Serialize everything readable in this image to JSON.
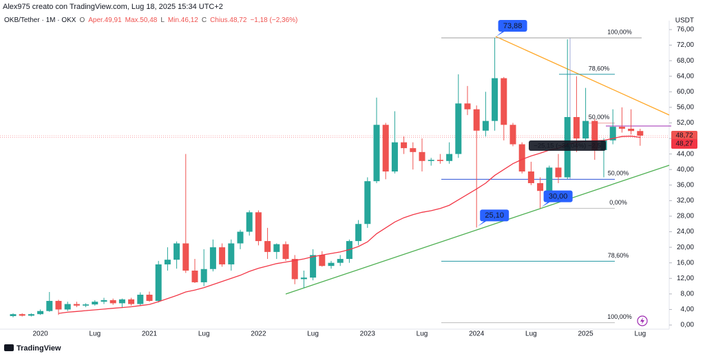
{
  "chart_data": {
    "type": "candlestick",
    "watermark": "Alex975 creato con TradingView.com, Lug 18, 2025 15:34 UTC+2",
    "legend_parts": [
      {
        "label": "OKB/Tether · 1M · OKX",
        "color": "#131722"
      },
      {
        "label": "O",
        "color": "#555555"
      },
      {
        "label": "Aper.49,91",
        "color": "#ef5350"
      },
      {
        "label": "Max.50,48",
        "color": "#ef5350"
      },
      {
        "label": "L",
        "color": "#555555"
      },
      {
        "label": "Min.46,12",
        "color": "#ef5350"
      },
      {
        "label": "C",
        "color": "#555555"
      },
      {
        "label": "Chius.48,72",
        "color": "#ef5350"
      },
      {
        "label": "−1,18 (−2,36%)",
        "color": "#ef5350"
      }
    ],
    "y_axis_label": "USDT",
    "brand": "TradingView",
    "up_color": "#26a69a",
    "down_color": "#ef5350",
    "grid": false,
    "categories": [
      null,
      null,
      null,
      "2020",
      null,
      null,
      null,
      null,
      null,
      "Lug",
      null,
      null,
      null,
      null,
      null,
      "2021",
      null,
      null,
      null,
      null,
      null,
      "Lug",
      null,
      null,
      null,
      null,
      null,
      "2022",
      null,
      null,
      null,
      null,
      null,
      "Lug",
      null,
      null,
      null,
      null,
      null,
      "2023",
      null,
      null,
      null,
      null,
      null,
      "Lug",
      null,
      null,
      null,
      null,
      null,
      "2024",
      null,
      null,
      null,
      null,
      null,
      "Lug",
      null,
      null,
      null,
      null,
      null,
      "2025",
      null,
      null,
      null,
      null,
      null,
      "Lug"
    ],
    "open": [
      2.3,
      2.8,
      2.4,
      2.8,
      3.6,
      6.2,
      4.0,
      5.4,
      5.0,
      5.3,
      6.0,
      6.4,
      5.6,
      6.6,
      5.4,
      7.8,
      6.2,
      15.6,
      16.8,
      21.0,
      14.0,
      11.0,
      14.4,
      20.0,
      15.6,
      21.0,
      24.0,
      29.0,
      21.6,
      18.8,
      20.8,
      17.0,
      11.8,
      12.2,
      18.0,
      15.2,
      16.0,
      17.0,
      21.6,
      26.0,
      37.0,
      51.5,
      39.5,
      47.0,
      45.5,
      44.5,
      42.2,
      42.5,
      42.2,
      44.0,
      57.0,
      55.5,
      50.0,
      52.5,
      63.5,
      51.5,
      46.5,
      39.5,
      36.5,
      34.5,
      40.5,
      38.0,
      53.5,
      48.0,
      52.5,
      45.0,
      47.5,
      51.0,
      50.5,
      49.91
    ],
    "high": [
      3.0,
      3.0,
      3.0,
      4.0,
      8.5,
      6.5,
      6.0,
      6.0,
      5.6,
      6.4,
      7.0,
      6.8,
      6.8,
      7.0,
      8.4,
      8.6,
      16.5,
      20.0,
      21.5,
      44.0,
      17.0,
      19.5,
      22.0,
      21.0,
      22.0,
      24.5,
      29.5,
      29.5,
      25.0,
      21.0,
      21.5,
      18.0,
      14.0,
      19.5,
      19.0,
      16.5,
      18.0,
      22.0,
      27.0,
      38.0,
      58.5,
      52.0,
      55.0,
      48.5,
      47.0,
      48.0,
      43.0,
      44.0,
      47.0,
      64.5,
      61.5,
      56.5,
      60.0,
      73.88,
      63.8,
      52.0,
      47.0,
      42.0,
      38.0,
      41.0,
      44.0,
      73.5,
      64.0,
      61.0,
      53.0,
      48.0,
      55.5,
      56.0,
      55.5,
      50.48
    ],
    "low": [
      2.0,
      2.2,
      2.2,
      2.6,
      3.4,
      2.6,
      3.6,
      4.6,
      4.6,
      5.0,
      5.4,
      5.2,
      4.4,
      5.0,
      5.0,
      6.0,
      5.8,
      14.0,
      14.5,
      13.4,
      10.8,
      10.0,
      13.8,
      15.0,
      14.0,
      19.5,
      23.0,
      20.5,
      17.0,
      17.0,
      16.5,
      10.5,
      9.5,
      11.5,
      15.0,
      14.5,
      15.2,
      16.0,
      20.5,
      25.0,
      36.5,
      37.5,
      39.0,
      44.0,
      40.0,
      39.5,
      41.0,
      41.5,
      41.5,
      43.0,
      54.0,
      25.1,
      48.5,
      50.0,
      47.5,
      46.0,
      39.0,
      36.0,
      30.0,
      34.0,
      36.5,
      37.5,
      44.5,
      47.0,
      42.5,
      38.0,
      46.5,
      49.5,
      49.0,
      46.12
    ],
    "close": [
      2.8,
      2.4,
      2.8,
      3.6,
      6.2,
      4.0,
      5.4,
      5.0,
      5.3,
      6.0,
      6.4,
      5.6,
      6.6,
      5.4,
      7.8,
      6.2,
      15.6,
      16.8,
      21.0,
      14.0,
      11.0,
      14.4,
      20.0,
      15.6,
      21.0,
      24.0,
      29.0,
      21.6,
      18.8,
      20.8,
      17.0,
      11.8,
      12.2,
      18.0,
      15.2,
      16.0,
      17.0,
      21.6,
      26.0,
      37.0,
      51.5,
      39.5,
      47.0,
      45.5,
      44.5,
      42.2,
      42.5,
      42.2,
      44.0,
      57.0,
      55.5,
      50.0,
      52.5,
      63.5,
      51.5,
      46.5,
      39.5,
      36.5,
      34.5,
      40.5,
      38.0,
      53.5,
      48.0,
      52.5,
      45.0,
      47.5,
      51.0,
      50.5,
      49.91,
      48.72
    ],
    "ma": {
      "color": "#f23645",
      "values": [
        null,
        null,
        null,
        null,
        null,
        3.0,
        3.3,
        3.5,
        3.7,
        3.9,
        4.1,
        4.3,
        4.5,
        4.7,
        5.0,
        5.3,
        6.0,
        6.8,
        7.6,
        8.5,
        9.0,
        9.6,
        10.4,
        11.2,
        12.0,
        12.8,
        13.8,
        14.6,
        15.2,
        15.8,
        16.2,
        16.6,
        17.0,
        17.6,
        18.0,
        18.4,
        18.8,
        19.4,
        20.2,
        21.4,
        23.5,
        25.0,
        26.5,
        27.6,
        28.4,
        29.0,
        29.4,
        30.0,
        30.8,
        32.2,
        33.6,
        35.0,
        36.5,
        38.5,
        40.0,
        41.5,
        42.6,
        43.5,
        44.2,
        45.0,
        45.5,
        46.5,
        47.0,
        47.3,
        47.4,
        47.5,
        48.0,
        48.5,
        48.6,
        48.27
      ]
    },
    "ylim": [
      -1.06,
      78.3
    ],
    "yticks": [
      {
        "value": 0,
        "label": "0,00"
      },
      {
        "value": 4,
        "label": "4,00"
      },
      {
        "value": 8,
        "label": "8,00"
      },
      {
        "value": 12,
        "label": "12,00"
      },
      {
        "value": 16,
        "label": "16,00"
      },
      {
        "value": 20,
        "label": "20,00"
      },
      {
        "value": 24,
        "label": "24,00"
      },
      {
        "value": 28,
        "label": "28,00"
      },
      {
        "value": 32,
        "label": "32,00"
      },
      {
        "value": 36,
        "label": "36,00"
      },
      {
        "value": 40,
        "label": "40,00"
      },
      {
        "value": 44,
        "label": "44,00"
      },
      {
        "value": 48,
        "label": "48,00"
      },
      {
        "value": 52,
        "label": "52,00"
      },
      {
        "value": 56,
        "label": "56,00"
      },
      {
        "value": 60,
        "label": "60,00"
      },
      {
        "value": 64,
        "label": "64,00"
      },
      {
        "value": 68,
        "label": "68,00"
      },
      {
        "value": 72,
        "label": "72,00"
      },
      {
        "value": 76,
        "label": "76,00"
      }
    ],
    "callouts": [
      {
        "value": 73.88,
        "label": "73,88"
      },
      {
        "value": 25.1,
        "label": "25,10"
      },
      {
        "value": 30,
        "label": "30,00"
      }
    ],
    "price_tags": [
      {
        "value": 48.72,
        "label": "48,72",
        "color": "#ef5350"
      },
      {
        "value": 48.27,
        "label": "48,27",
        "color": "#f23645"
      }
    ],
    "fib_levels": [
      {
        "value": 73.88,
        "label": "100,00%",
        "color": "#9e9e9e"
      },
      {
        "value": 64.5,
        "label": "78,60%",
        "color": "#2196a3"
      },
      {
        "value": 51.94,
        "label": "50,00%",
        "color": "#ef9a9a"
      },
      {
        "value": 30,
        "label": "0,00%",
        "color": "#bdbdbd"
      },
      {
        "value": 37.5,
        "label": "50,00%",
        "color": "#2a4fd6"
      },
      {
        "value": 16.4,
        "label": "78,60%",
        "color": "#2196a3"
      },
      {
        "value": 0.6,
        "label": "100,00%",
        "color": "#bdbdbd"
      }
    ],
    "measure_label": "−25,15 (−34,04%) −2,5"
  }
}
